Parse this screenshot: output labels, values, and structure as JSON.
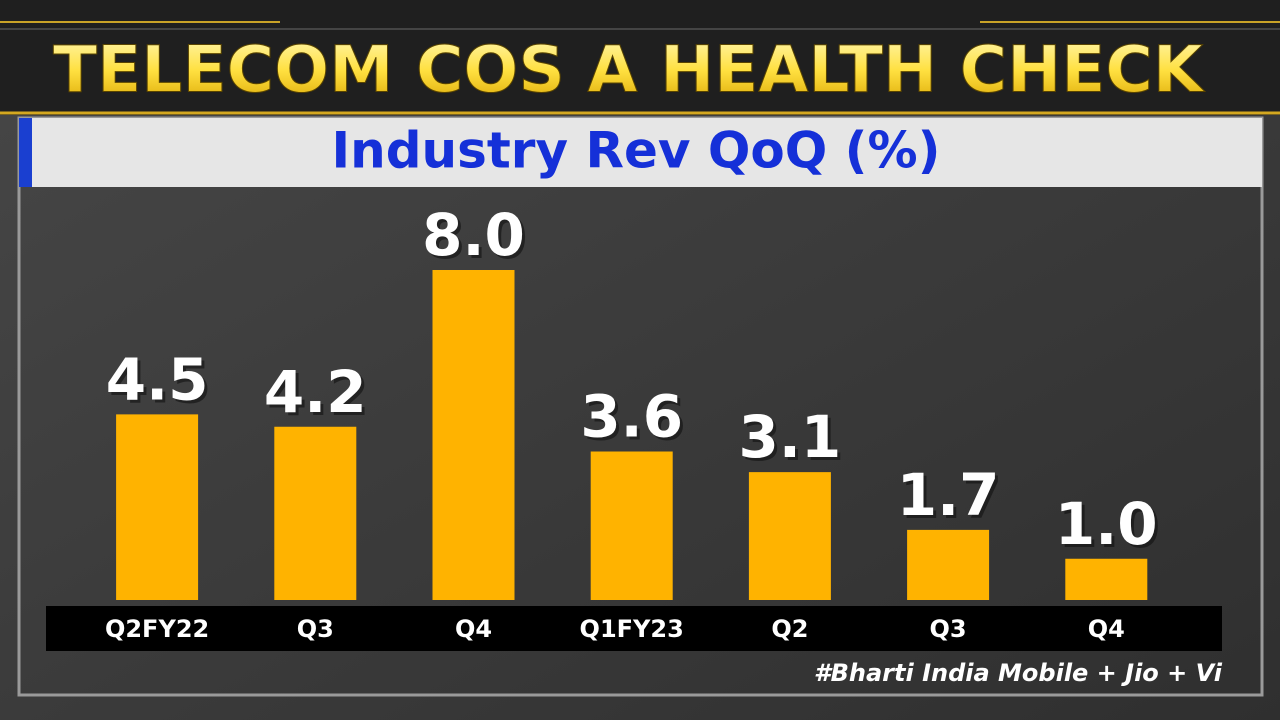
{
  "header": {
    "title": "TELECOM COS A HEALTH CHECK"
  },
  "chart_data": {
    "type": "bar",
    "title": "Industry Rev QoQ (%)",
    "categories": [
      "Q2FY22",
      "Q3",
      "Q4",
      "Q1FY23",
      "Q2",
      "Q3",
      "Q4"
    ],
    "values": [
      4.5,
      4.2,
      8.0,
      3.6,
      3.1,
      1.7,
      1.0
    ],
    "value_labels": [
      "4.5",
      "4.2",
      "8.0",
      "3.6",
      "3.1",
      "1.7",
      "1.0"
    ],
    "color": "#ffb300",
    "note": "#Bharti India Mobile + Jio + Vi"
  }
}
